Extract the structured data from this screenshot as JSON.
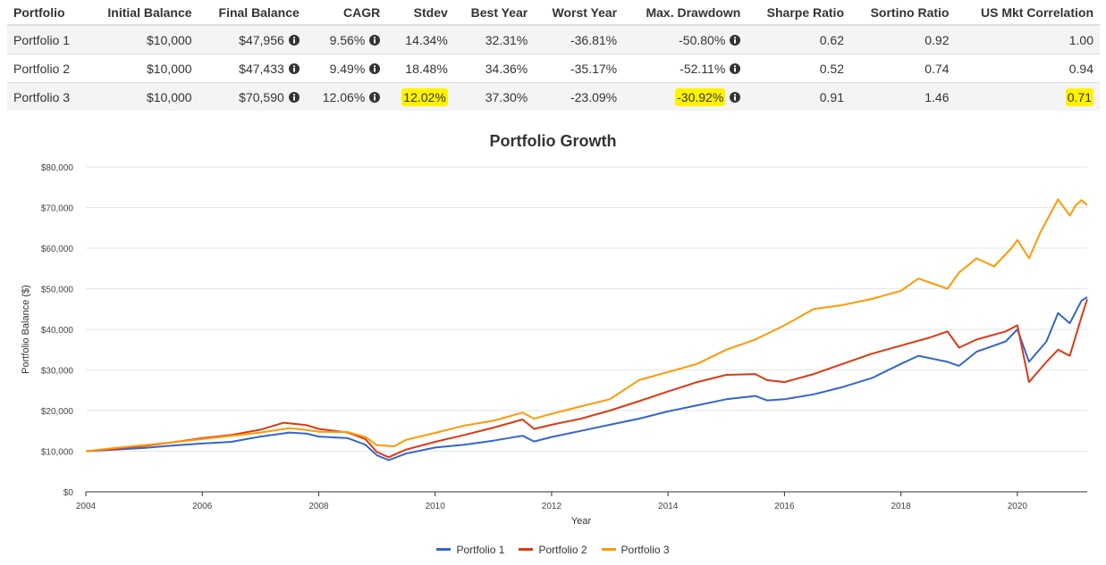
{
  "table": {
    "headers": [
      "Portfolio",
      "Initial Balance",
      "Final Balance",
      "CAGR",
      "Stdev",
      "Best Year",
      "Worst Year",
      "Max. Drawdown",
      "Sharpe Ratio",
      "Sortino Ratio",
      "US Mkt Correlation"
    ],
    "rows": [
      {
        "name": "Portfolio 1",
        "initial": "$10,000",
        "final": "$47,956",
        "cagr": "9.56%",
        "stdev": "14.34%",
        "best": "32.31%",
        "worst": "-36.81%",
        "drawdown": "-50.80%",
        "sharpe": "0.62",
        "sortino": "0.92",
        "corr": "1.00"
      },
      {
        "name": "Portfolio 2",
        "initial": "$10,000",
        "final": "$47,433",
        "cagr": "9.49%",
        "stdev": "18.48%",
        "best": "34.36%",
        "worst": "-35.17%",
        "drawdown": "-52.11%",
        "sharpe": "0.52",
        "sortino": "0.74",
        "corr": "0.94"
      },
      {
        "name": "Portfolio 3",
        "initial": "$10,000",
        "final": "$70,590",
        "cagr": "12.06%",
        "stdev": "12.02%",
        "best": "37.30%",
        "worst": "-23.09%",
        "drawdown": "-30.92%",
        "sharpe": "0.91",
        "sortino": "1.46",
        "corr": "0.71"
      }
    ],
    "highlight_color": "#fff200"
  },
  "chart_data": {
    "type": "line",
    "title": "Portfolio Growth",
    "xlabel": "Year",
    "ylabel": "Portfolio Balance ($)",
    "xlim": [
      2004,
      2021.2
    ],
    "ylim": [
      0,
      80000
    ],
    "x_ticks": [
      2004,
      2006,
      2008,
      2010,
      2012,
      2014,
      2016,
      2018,
      2020
    ],
    "y_ticks": [
      0,
      10000,
      20000,
      30000,
      40000,
      50000,
      60000,
      70000,
      80000
    ],
    "y_tick_labels": [
      "$0",
      "$10,000",
      "$20,000",
      "$30,000",
      "$40,000",
      "$50,000",
      "$60,000",
      "$70,000",
      "$80,000"
    ],
    "grid": "horizontal",
    "legend_position": "bottom",
    "series": [
      {
        "name": "Portfolio 1",
        "color": "#3366cc",
        "points": [
          [
            2004.0,
            10000
          ],
          [
            2004.5,
            10400
          ],
          [
            2005.0,
            10800
          ],
          [
            2005.5,
            11400
          ],
          [
            2006.0,
            11900
          ],
          [
            2006.5,
            12300
          ],
          [
            2007.0,
            13600
          ],
          [
            2007.5,
            14600
          ],
          [
            2007.8,
            14300
          ],
          [
            2008.0,
            13600
          ],
          [
            2008.5,
            13200
          ],
          [
            2008.8,
            11600
          ],
          [
            2009.0,
            9000
          ],
          [
            2009.2,
            7800
          ],
          [
            2009.5,
            9400
          ],
          [
            2010.0,
            10900
          ],
          [
            2010.5,
            11600
          ],
          [
            2011.0,
            12600
          ],
          [
            2011.5,
            13800
          ],
          [
            2011.7,
            12400
          ],
          [
            2012.0,
            13500
          ],
          [
            2012.5,
            15000
          ],
          [
            2013.0,
            16500
          ],
          [
            2013.5,
            18000
          ],
          [
            2014.0,
            19800
          ],
          [
            2014.5,
            21300
          ],
          [
            2015.0,
            22800
          ],
          [
            2015.5,
            23600
          ],
          [
            2015.7,
            22500
          ],
          [
            2016.0,
            22800
          ],
          [
            2016.5,
            24000
          ],
          [
            2017.0,
            25800
          ],
          [
            2017.5,
            28000
          ],
          [
            2018.0,
            31500
          ],
          [
            2018.3,
            33500
          ],
          [
            2018.8,
            32000
          ],
          [
            2019.0,
            31000
          ],
          [
            2019.3,
            34500
          ],
          [
            2019.8,
            37000
          ],
          [
            2020.0,
            40000
          ],
          [
            2020.2,
            32000
          ],
          [
            2020.5,
            37000
          ],
          [
            2020.7,
            44000
          ],
          [
            2020.9,
            41500
          ],
          [
            2021.1,
            47000
          ],
          [
            2021.2,
            47956
          ]
        ]
      },
      {
        "name": "Portfolio 2",
        "color": "#dc3912",
        "points": [
          [
            2004.0,
            10000
          ],
          [
            2004.5,
            10600
          ],
          [
            2005.0,
            11300
          ],
          [
            2005.5,
            12200
          ],
          [
            2006.0,
            13200
          ],
          [
            2006.5,
            14000
          ],
          [
            2007.0,
            15300
          ],
          [
            2007.4,
            17000
          ],
          [
            2007.8,
            16400
          ],
          [
            2008.0,
            15500
          ],
          [
            2008.5,
            14600
          ],
          [
            2008.8,
            13000
          ],
          [
            2009.0,
            9800
          ],
          [
            2009.2,
            8500
          ],
          [
            2009.5,
            10400
          ],
          [
            2010.0,
            12300
          ],
          [
            2010.5,
            14000
          ],
          [
            2011.0,
            15800
          ],
          [
            2011.5,
            17800
          ],
          [
            2011.7,
            15500
          ],
          [
            2012.0,
            16500
          ],
          [
            2012.5,
            18000
          ],
          [
            2013.0,
            20000
          ],
          [
            2013.5,
            22300
          ],
          [
            2014.0,
            24700
          ],
          [
            2014.5,
            27000
          ],
          [
            2015.0,
            28800
          ],
          [
            2015.5,
            29000
          ],
          [
            2015.7,
            27500
          ],
          [
            2016.0,
            27000
          ],
          [
            2016.5,
            29000
          ],
          [
            2017.0,
            31500
          ],
          [
            2017.5,
            34000
          ],
          [
            2018.0,
            36000
          ],
          [
            2018.5,
            38000
          ],
          [
            2018.8,
            39500
          ],
          [
            2019.0,
            35500
          ],
          [
            2019.3,
            37500
          ],
          [
            2019.8,
            39500
          ],
          [
            2020.0,
            41000
          ],
          [
            2020.2,
            27000
          ],
          [
            2020.5,
            32000
          ],
          [
            2020.7,
            35000
          ],
          [
            2020.9,
            33500
          ],
          [
            2021.1,
            43000
          ],
          [
            2021.2,
            47433
          ]
        ]
      },
      {
        "name": "Portfolio 3",
        "color": "#ff9900",
        "points": [
          [
            2004.0,
            10000
          ],
          [
            2004.5,
            10800
          ],
          [
            2005.0,
            11500
          ],
          [
            2005.5,
            12200
          ],
          [
            2006.0,
            13000
          ],
          [
            2006.5,
            13800
          ],
          [
            2007.0,
            14600
          ],
          [
            2007.5,
            15700
          ],
          [
            2007.8,
            15200
          ],
          [
            2008.0,
            14800
          ],
          [
            2008.5,
            14700
          ],
          [
            2008.8,
            13500
          ],
          [
            2009.0,
            11500
          ],
          [
            2009.3,
            11200
          ],
          [
            2009.5,
            12800
          ],
          [
            2010.0,
            14500
          ],
          [
            2010.5,
            16300
          ],
          [
            2011.0,
            17500
          ],
          [
            2011.5,
            19500
          ],
          [
            2011.7,
            18000
          ],
          [
            2012.0,
            19200
          ],
          [
            2012.5,
            21000
          ],
          [
            2013.0,
            22800
          ],
          [
            2013.5,
            27500
          ],
          [
            2014.0,
            29500
          ],
          [
            2014.5,
            31500
          ],
          [
            2015.0,
            35000
          ],
          [
            2015.5,
            37500
          ],
          [
            2016.0,
            41000
          ],
          [
            2016.5,
            45000
          ],
          [
            2017.0,
            46000
          ],
          [
            2017.5,
            47500
          ],
          [
            2018.0,
            49500
          ],
          [
            2018.3,
            52500
          ],
          [
            2018.8,
            50000
          ],
          [
            2019.0,
            54000
          ],
          [
            2019.3,
            57500
          ],
          [
            2019.6,
            55500
          ],
          [
            2019.9,
            60000
          ],
          [
            2020.0,
            62000
          ],
          [
            2020.2,
            57500
          ],
          [
            2020.4,
            64000
          ],
          [
            2020.7,
            72000
          ],
          [
            2020.9,
            68000
          ],
          [
            2021.0,
            70500
          ],
          [
            2021.1,
            71800
          ],
          [
            2021.2,
            70590
          ]
        ]
      }
    ]
  }
}
